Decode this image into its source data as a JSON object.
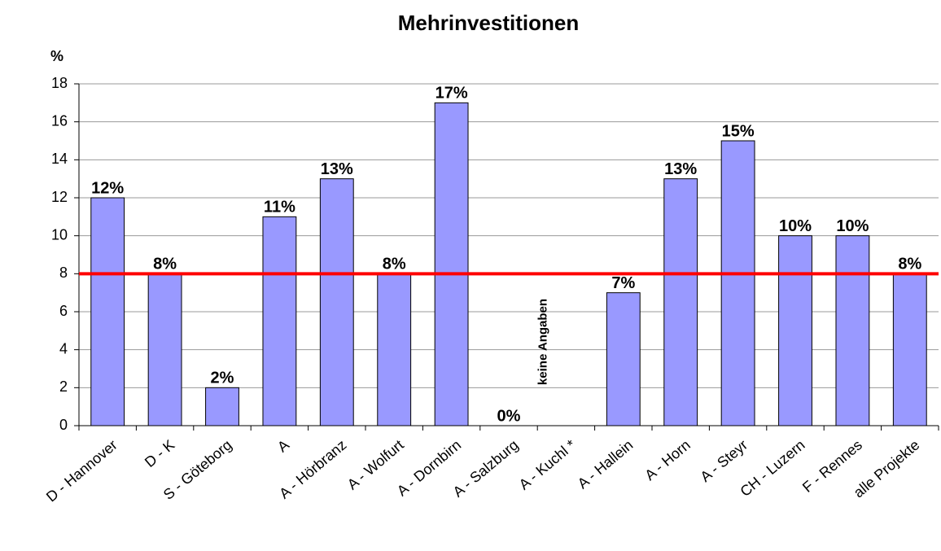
{
  "chart_data": {
    "type": "bar",
    "title": "Mehrinvestitionen",
    "y_label": "%",
    "categories": [
      "D - Hannover",
      "D - K",
      "S - Göteborg",
      "A",
      "A - Hörbranz",
      "A - Wolfurt",
      "A - Dornbirn",
      "A - Salzburg",
      "A - Kuchl *",
      "A - Hallein",
      "A - Horn",
      "A - Steyr",
      "CH - Luzern",
      "F - Rennes",
      "alle Projekte"
    ],
    "values": [
      12,
      8,
      2,
      11,
      13,
      8,
      17,
      0,
      null,
      7,
      13,
      15,
      10,
      10,
      8
    ],
    "value_labels": [
      "12%",
      "8%",
      "2%",
      "11%",
      "13%",
      "8%",
      "17%",
      "0%",
      null,
      "7%",
      "13%",
      "15%",
      "10%",
      "10%",
      "8%"
    ],
    "annotations": [
      {
        "category": 8,
        "text": "keine Angaben"
      }
    ],
    "color": "#9999ff",
    "reference_line": {
      "value": 8,
      "color": "#ff0000"
    },
    "ylim": [
      0,
      18
    ],
    "yticks": [
      0,
      2,
      4,
      6,
      8,
      10,
      12,
      14,
      16,
      18
    ],
    "grid": true
  }
}
